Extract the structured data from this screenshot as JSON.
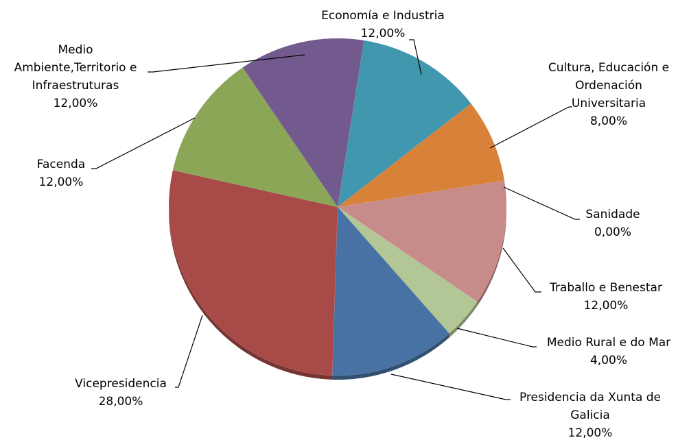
{
  "chart_data": {
    "type": "pie",
    "title": "",
    "slices": [
      {
        "label": "Economía e Industria",
        "value": 12.0,
        "value_label": "12,00%",
        "color": "#4197AE"
      },
      {
        "label": "Cultura, Educación e Ordenación Universitaria",
        "value": 8.0,
        "value_label": "8,00%",
        "color": "#D88139"
      },
      {
        "label": "Sanidade",
        "value": 0.0,
        "value_label": "0,00%",
        "color": "#D88139"
      },
      {
        "label": "Traballo e Benestar",
        "value": 12.0,
        "value_label": "12,00%",
        "color": "#C78B8A"
      },
      {
        "label": "Medio Rural e do Mar",
        "value": 4.0,
        "value_label": "4,00%",
        "color": "#B3C695"
      },
      {
        "label": "Presidencia da Xunta de Galicia",
        "value": 12.0,
        "value_label": "12,00%",
        "color": "#4872A3"
      },
      {
        "label": "Vicepresidencia",
        "value": 28.0,
        "value_label": "28,00%",
        "color": "#A84A48"
      },
      {
        "label": "Facenda",
        "value": 12.0,
        "value_label": "12,00%",
        "color": "#8BA656"
      },
      {
        "label": "Medio Ambiente,Territorio e Infraestruturas",
        "value": 12.0,
        "value_label": "12,00%",
        "color": "#725A8E"
      }
    ],
    "label_lines": [
      [
        "Economía e Industria",
        "12,00%"
      ],
      [
        "Cultura, Educación e",
        "Ordenación",
        "Universitaria",
        "8,00%"
      ],
      [
        "Sanidade",
        "0,00%"
      ],
      [
        "Traballo e Benestar",
        "12,00%"
      ],
      [
        "Medio Rural e do Mar",
        "4,00%"
      ],
      [
        "Presidencia da Xunta de",
        "Galicia",
        "12,00%"
      ],
      [
        "Vicepresidencia",
        "28,00%"
      ],
      [
        "Facenda",
        "12,00%"
      ],
      [
        "Medio",
        "Ambiente,Territorio e",
        "Infraestruturas",
        "12,00%"
      ]
    ],
    "legend": "none",
    "data_labels": "outside with leader lines"
  }
}
